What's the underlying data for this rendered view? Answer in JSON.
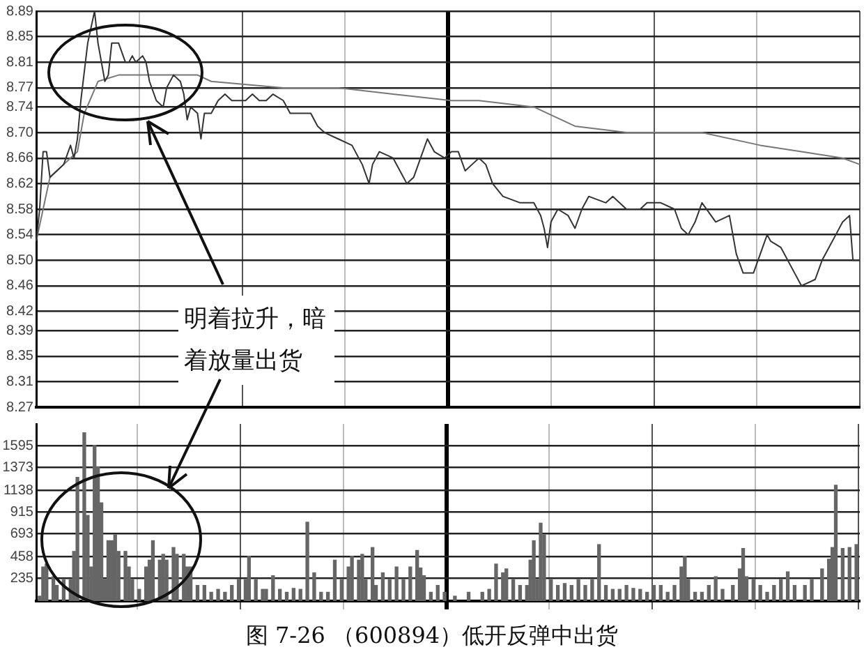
{
  "chart_data": [
    {
      "type": "line",
      "annotations": [
        "明着拉升，暗着放量出货"
      ],
      "categories": [
        null,
        null,
        null,
        null,
        null,
        null,
        null,
        null,
        null,
        null,
        null,
        null,
        null,
        null,
        null,
        null,
        null,
        null,
        null,
        null,
        null,
        null,
        null,
        null,
        null,
        null,
        null,
        null,
        null,
        null,
        null,
        null,
        null,
        null,
        null,
        null,
        null,
        null,
        null,
        null,
        null,
        null,
        null,
        null,
        null,
        null,
        null,
        null,
        null,
        null,
        null,
        null,
        null,
        null,
        null,
        null,
        null,
        null,
        null,
        null,
        null,
        null,
        null,
        null,
        null,
        null,
        null,
        null,
        null,
        null,
        null,
        null,
        null,
        null,
        null,
        null,
        null,
        null,
        null,
        null,
        null,
        null,
        null,
        null,
        null,
        null,
        null,
        null,
        null,
        null,
        null,
        null,
        null,
        null,
        null,
        null,
        null,
        null,
        null,
        null,
        null,
        null,
        null,
        null,
        null,
        null,
        null,
        null,
        null,
        null,
        null,
        null,
        null,
        null,
        null,
        null,
        null,
        null,
        null,
        null,
        null,
        null,
        null,
        null,
        null,
        null,
        null,
        null,
        null,
        null,
        null,
        null,
        null,
        null,
        null,
        null,
        null,
        null,
        null,
        null,
        null,
        null,
        null,
        null,
        null,
        null,
        null,
        null,
        null,
        null,
        null,
        null,
        null,
        null,
        null,
        null,
        null,
        null,
        null,
        null,
        null,
        null,
        null,
        null,
        null,
        null,
        null,
        null,
        null,
        null,
        null,
        null,
        null,
        null,
        null,
        null,
        null,
        null,
        null,
        null,
        null,
        null,
        null,
        null,
        null,
        null,
        null,
        null,
        null,
        null,
        null,
        null,
        null,
        null,
        null,
        null,
        null,
        null,
        null,
        null,
        null,
        null,
        null,
        null,
        null,
        null,
        null,
        null,
        null,
        null,
        null,
        null,
        null,
        null,
        null,
        null,
        null,
        null,
        null,
        null,
        null,
        null,
        null,
        null,
        null,
        null,
        null,
        null,
        null,
        null,
        null,
        null,
        null,
        null,
        null,
        null,
        null,
        null,
        null,
        null,
        null
      ],
      "ylim": [
        8.27,
        8.89
      ],
      "yticks": [
        8.27,
        8.31,
        8.35,
        8.39,
        8.42,
        8.46,
        {
          "value": 8.5,
          "label": "8.50"
        },
        8.54,
        8.58,
        8.62,
        8.66,
        {
          "value": 8.7,
          "label": "8.70"
        },
        8.74,
        8.77,
        8.81,
        8.85,
        8.89
      ],
      "tick_labels": "y",
      "grid": true,
      "legend": false,
      "marker": "none",
      "series": [
        {
          "color": "#333333",
          "values": [
            8.53,
            8.58,
            8.67,
            8.67,
            8.63,
            null,
            8.64,
            null,
            8.65,
            null,
            8.68,
            8.66,
            8.69,
            8.75,
            null,
            8.84,
            null,
            8.89,
            8.84,
            null,
            8.78,
            8.79,
            8.84,
            null,
            8.84,
            null,
            8.81,
            8.81,
            8.82,
            8.81,
            null,
            8.82,
            8.81,
            8.78,
            null,
            8.75,
            null,
            8.74,
            8.77,
            null,
            8.79,
            null,
            8.78,
            8.76,
            8.72,
            8.74,
            null,
            8.73,
            8.69,
            8.73,
            null,
            8.73,
            null,
            8.75,
            null,
            8.76,
            null,
            8.75,
            null,
            8.75,
            null,
            8.75,
            null,
            8.76,
            null,
            8.75,
            null,
            8.75,
            null,
            8.76,
            null,
            null,
            8.75,
            null,
            8.73,
            null,
            8.73,
            null,
            8.73,
            null,
            8.73,
            null,
            8.71,
            null,
            8.7,
            null,
            null,
            null,
            8.69,
            null,
            null,
            null,
            8.68,
            null,
            null,
            8.65,
            null,
            8.62,
            8.65,
            null,
            8.67,
            null,
            null,
            null,
            8.66,
            null,
            null,
            null,
            8.62,
            null,
            8.63,
            null,
            8.66,
            null,
            8.69,
            null,
            8.67,
            null,
            null,
            8.66,
            null,
            8.67,
            null,
            8.67,
            null,
            8.64,
            null,
            8.65,
            null,
            8.66,
            null,
            8.65,
            null,
            8.62,
            null,
            null,
            8.6,
            null,
            null,
            null,
            null,
            8.59,
            null,
            null,
            null,
            8.59,
            null,
            8.57,
            8.55,
            8.52,
            8.56,
            null,
            8.58,
            null,
            null,
            8.57,
            null,
            8.55,
            null,
            8.58,
            null,
            8.6,
            null,
            null,
            null,
            null,
            8.59,
            null,
            8.6,
            null,
            null,
            null,
            8.58,
            null,
            null,
            null,
            8.58,
            null,
            8.59,
            null,
            null,
            null,
            8.59,
            null,
            null,
            null,
            8.58,
            null,
            8.55,
            null,
            8.54,
            null,
            8.56,
            null,
            8.59,
            null,
            null,
            null,
            8.56,
            null,
            null,
            null,
            8.57,
            null,
            8.51,
            null,
            8.48,
            null,
            null,
            8.48,
            null,
            8.51,
            null,
            8.54,
            8.53,
            null,
            null,
            8.52,
            null,
            null,
            null,
            8.48,
            null,
            8.46,
            null,
            null,
            null,
            8.47,
            null,
            8.5,
            null,
            8.52,
            null,
            8.54,
            null,
            8.56,
            null,
            8.57,
            8.5,
            null,
            8.5
          ]
        },
        {
          "color": "#777777",
          "values": [
            8.53,
            null,
            null,
            null,
            8.63,
            null,
            null,
            null,
            8.65,
            null,
            null,
            null,
            8.67,
            null,
            8.73,
            null,
            null,
            null,
            8.78,
            null,
            null,
            null,
            null,
            null,
            8.79,
            null,
            null,
            null,
            null,
            null,
            null,
            null,
            null,
            null,
            null,
            8.79,
            null,
            null,
            null,
            null,
            null,
            null,
            null,
            null,
            null,
            null,
            null,
            8.79,
            null,
            null,
            null,
            8.78,
            null,
            null,
            null,
            null,
            null,
            null,
            null,
            null,
            null,
            null,
            null,
            null,
            null,
            null,
            null,
            null,
            null,
            null,
            null,
            null,
            8.77,
            null,
            null,
            null,
            null,
            null,
            null,
            null,
            null,
            null,
            null,
            null,
            null,
            null,
            null,
            null,
            8.77,
            null,
            null,
            null,
            null,
            null,
            null,
            null,
            null,
            null,
            null,
            null,
            null,
            null,
            null,
            null,
            8.76,
            null,
            null,
            null,
            null,
            null,
            null,
            null,
            null,
            null,
            null,
            null,
            null,
            null,
            null,
            null,
            null,
            8.75,
            null,
            null,
            null,
            null,
            null,
            null,
            null,
            8.75,
            null,
            null,
            null,
            null,
            null,
            null,
            null,
            null,
            null,
            null,
            null,
            null,
            null,
            null,
            null,
            8.74,
            null,
            null,
            null,
            null,
            null,
            null,
            null,
            null,
            null,
            null,
            null,
            8.71,
            null,
            null,
            null,
            null,
            null,
            null,
            null,
            null,
            null,
            null,
            null,
            null,
            null,
            null,
            8.7,
            null,
            null,
            null,
            null,
            null,
            null,
            null,
            null,
            null,
            8.7,
            null,
            null,
            null,
            null,
            null,
            null,
            null,
            null,
            null,
            null,
            null,
            8.7,
            null,
            null,
            null,
            null,
            null,
            null,
            null,
            null,
            null,
            null,
            null,
            null,
            null,
            null,
            null,
            null,
            8.68,
            null,
            null,
            null,
            null,
            null,
            null,
            null,
            null,
            null,
            null,
            null,
            8.67,
            null,
            null,
            null,
            null,
            null,
            null,
            null,
            null,
            null,
            null,
            null,
            8.66,
            null,
            null,
            null,
            null,
            8.65
          ]
        }
      ]
    },
    {
      "type": "bar",
      "title": "图 7-26 （600894）低开反弹中出货",
      "categories": [
        null,
        null,
        null,
        null,
        null,
        null,
        null,
        null,
        null,
        null,
        null,
        null,
        null,
        null,
        null,
        null,
        null,
        null,
        null,
        null,
        null,
        null,
        null,
        null,
        null,
        null,
        null,
        null,
        null,
        null,
        null,
        null,
        null,
        null,
        null,
        null,
        null,
        null,
        null,
        null,
        null,
        null,
        null,
        null,
        null,
        null,
        null,
        null,
        null,
        null,
        null,
        null,
        null,
        null,
        null,
        null,
        null,
        null,
        null,
        null,
        null,
        null,
        null,
        null,
        null,
        null,
        null,
        null,
        null,
        null,
        null,
        null,
        null,
        null,
        null,
        null,
        null,
        null,
        null,
        null,
        null,
        null,
        null,
        null,
        null,
        null,
        null,
        null,
        null,
        null,
        null,
        null,
        null,
        null,
        null,
        null,
        null,
        null,
        null,
        null,
        null,
        null,
        null,
        null,
        null,
        null,
        null,
        null,
        null,
        null,
        null,
        null,
        null,
        null,
        null,
        null,
        null,
        null,
        null,
        null,
        null,
        null,
        null,
        null,
        null,
        null,
        null,
        null,
        null,
        null,
        null,
        null,
        null,
        null,
        null,
        null,
        null,
        null,
        null,
        null,
        null,
        null,
        null,
        null,
        null,
        null,
        null,
        null,
        null,
        null,
        null,
        null,
        null,
        null,
        null,
        null,
        null,
        null,
        null,
        null,
        null,
        null,
        null,
        null,
        null,
        null,
        null,
        null,
        null,
        null,
        null,
        null,
        null,
        null,
        null,
        null,
        null,
        null,
        null,
        null,
        null,
        null,
        null,
        null,
        null,
        null,
        null,
        null,
        null,
        null,
        null,
        null,
        null,
        null,
        null,
        null,
        null,
        null,
        null,
        null,
        null,
        null,
        null,
        null,
        null,
        null,
        null,
        null,
        null,
        null,
        null,
        null,
        null,
        null,
        null,
        null,
        null,
        null,
        null,
        null,
        null,
        null,
        null,
        null,
        null,
        null,
        null,
        null,
        null,
        null,
        null,
        null,
        null,
        null,
        null,
        null,
        null,
        null,
        null,
        null,
        null
      ],
      "ylim": [
        0,
        1820
      ],
      "yticks": [
        235,
        458,
        693,
        915,
        1138,
        1373,
        1595
      ],
      "tick_labels": "y",
      "grid": true,
      "legend": false,
      "series": [
        {
          "color": "#666666",
          "values": [
            null,
            50,
            350,
            380,
            null,
            250,
            160,
            null,
            220,
            null,
            220,
            510,
            1270,
            null,
            1730,
            880,
            350,
            1600,
            1380,
            1010,
            220,
            620,
            620,
            680,
            510,
            null,
            510,
            350,
            220,
            null,
            120,
            null,
            350,
            420,
            620,
            null,
            420,
            480,
            420,
            null,
            550,
            480,
            null,
            480,
            350,
            350,
            null,
            160,
            null,
            160,
            null,
            90,
            null,
            120,
            null,
            90,
            null,
            160,
            null,
            220,
            null,
            220,
            460,
            null,
            220,
            null,
            120,
            120,
            null,
            260,
            null,
            120,
            null,
            90,
            null,
            130,
            null,
            120,
            null,
            810,
            null,
            290,
            null,
            90,
            null,
            90,
            null,
            420,
            null,
            220,
            null,
            350,
            460,
            null,
            420,
            480,
            220,
            null,
            550,
            160,
            null,
            290,
            null,
            220,
            null,
            350,
            null,
            220,
            null,
            350,
            null,
            520,
            340,
            260,
            null,
            90,
            null,
            160,
            null,
            90,
            null,
            null,
            50,
            null,
            null,
            null,
            90,
            null,
            null,
            null,
            90,
            null,
            120,
            null,
            380,
            null,
            290,
            330,
            null,
            220,
            null,
            160,
            null,
            160,
            420,
            620,
            220,
            800,
            680,
            null,
            220,
            null,
            160,
            null,
            180,
            null,
            160,
            null,
            220,
            null,
            160,
            null,
            220,
            null,
            580,
            null,
            160,
            null,
            120,
            null,
            120,
            null,
            160,
            null,
            130,
            null,
            120,
            null,
            90,
            null,
            160,
            null,
            160,
            null,
            90,
            null,
            160,
            null,
            350,
            460,
            220,
            null,
            90,
            null,
            90,
            null,
            160,
            null,
            250,
            null,
            120,
            null,
            null,
            160,
            null,
            330,
            540,
            250,
            null,
            220,
            null,
            160,
            null,
            90,
            null,
            160,
            null,
            220,
            null,
            300,
            null,
            160,
            null,
            null,
            160,
            null,
            220,
            null,
            null,
            330,
            null,
            430,
            550,
            1190,
            null,
            540,
            null,
            550,
            null,
            580,
            null
          ]
        }
      ]
    }
  ]
}
